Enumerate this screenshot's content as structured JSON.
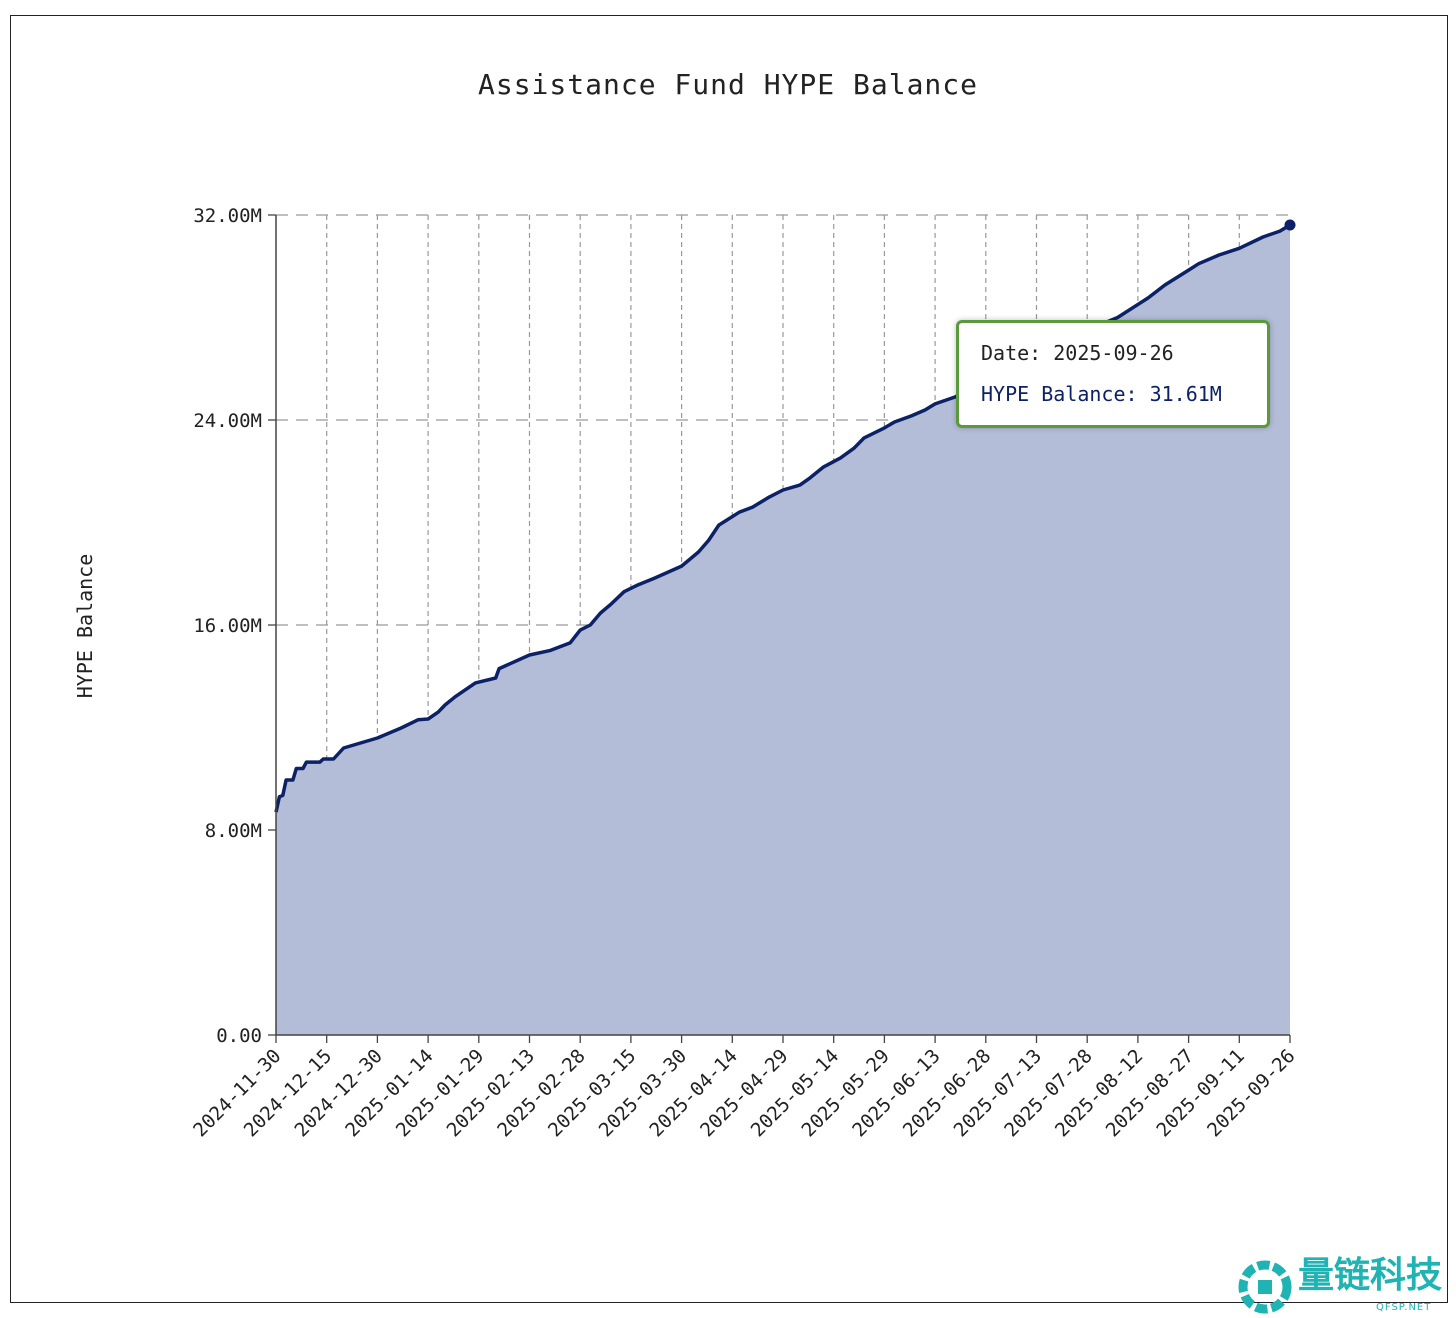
{
  "chart_data": {
    "type": "area",
    "title": "Assistance Fund HYPE Balance",
    "xlabel": "",
    "ylabel": "HYPE Balance",
    "ylim": [
      0,
      32000000
    ],
    "yticks": [
      "0.00",
      "8.00M",
      "16.00M",
      "24.00M",
      "32.00M"
    ],
    "ytick_values": [
      0,
      8000000,
      16000000,
      24000000,
      32000000
    ],
    "xlim": [
      "2024-11-30",
      "2025-09-26"
    ],
    "xticks": [
      "2024-11-30",
      "2024-12-15",
      "2024-12-30",
      "2025-01-14",
      "2025-01-29",
      "2025-02-13",
      "2025-02-28",
      "2025-03-15",
      "2025-03-30",
      "2025-04-14",
      "2025-04-29",
      "2025-05-14",
      "2025-05-29",
      "2025-06-13",
      "2025-06-28",
      "2025-07-13",
      "2025-07-28",
      "2025-08-12",
      "2025-08-27",
      "2025-09-11",
      "2025-09-26"
    ],
    "grid": true,
    "line_color": "#0d2266",
    "fill_color": "#b3bdd8",
    "x": [
      "2024-11-30",
      "2024-12-01",
      "2024-12-02",
      "2024-12-03",
      "2024-12-05",
      "2024-12-06",
      "2024-12-08",
      "2024-12-09",
      "2024-12-13",
      "2024-12-14",
      "2024-12-17",
      "2024-12-20",
      "2024-12-30",
      "2025-01-06",
      "2025-01-11",
      "2025-01-14",
      "2025-01-17",
      "2025-01-19",
      "2025-01-22",
      "2025-01-28",
      "2025-02-03",
      "2025-02-04",
      "2025-02-13",
      "2025-02-19",
      "2025-02-25",
      "2025-02-28",
      "2025-03-03",
      "2025-03-06",
      "2025-03-09",
      "2025-03-13",
      "2025-03-17",
      "2025-03-22",
      "2025-03-30",
      "2025-04-04",
      "2025-04-07",
      "2025-04-10",
      "2025-04-16",
      "2025-04-20",
      "2025-04-25",
      "2025-04-29",
      "2025-05-04",
      "2025-05-07",
      "2025-05-11",
      "2025-05-16",
      "2025-05-20",
      "2025-05-23",
      "2025-05-29",
      "2025-06-01",
      "2025-06-06",
      "2025-06-10",
      "2025-06-13",
      "2025-06-19",
      "2025-06-28",
      "2025-07-13",
      "2025-07-28",
      "2025-08-06",
      "2025-08-15",
      "2025-08-20",
      "2025-08-27",
      "2025-08-30",
      "2025-09-05",
      "2025-09-11",
      "2025-09-18",
      "2025-09-23",
      "2025-09-26"
    ],
    "values": [
      8700000,
      9300000,
      9350000,
      9950000,
      9950000,
      10400000,
      10400000,
      10650000,
      10650000,
      10770000,
      10770000,
      11200000,
      11590000,
      11980000,
      12300000,
      12330000,
      12600000,
      12880000,
      13200000,
      13740000,
      13930000,
      14300000,
      14830000,
      15000000,
      15300000,
      15800000,
      16000000,
      16470000,
      16800000,
      17300000,
      17560000,
      17830000,
      18300000,
      18850000,
      19300000,
      19900000,
      20400000,
      20600000,
      21000000,
      21270000,
      21460000,
      21740000,
      22170000,
      22520000,
      22900000,
      23300000,
      23690000,
      23920000,
      24160000,
      24390000,
      24630000,
      24900000,
      25600000,
      26600000,
      27500000,
      28000000,
      28760000,
      29270000,
      29850000,
      30100000,
      30440000,
      30700000,
      31140000,
      31370000,
      31610000
    ]
  },
  "tooltip": {
    "date_text": "Date: 2025-09-26",
    "value_text": "HYPE Balance: 31.61M",
    "border_color": "#5a9a3c"
  },
  "watermark": {
    "text": "量链科技",
    "subtext": "QFSP.NET",
    "color": "#1fb3b3"
  }
}
